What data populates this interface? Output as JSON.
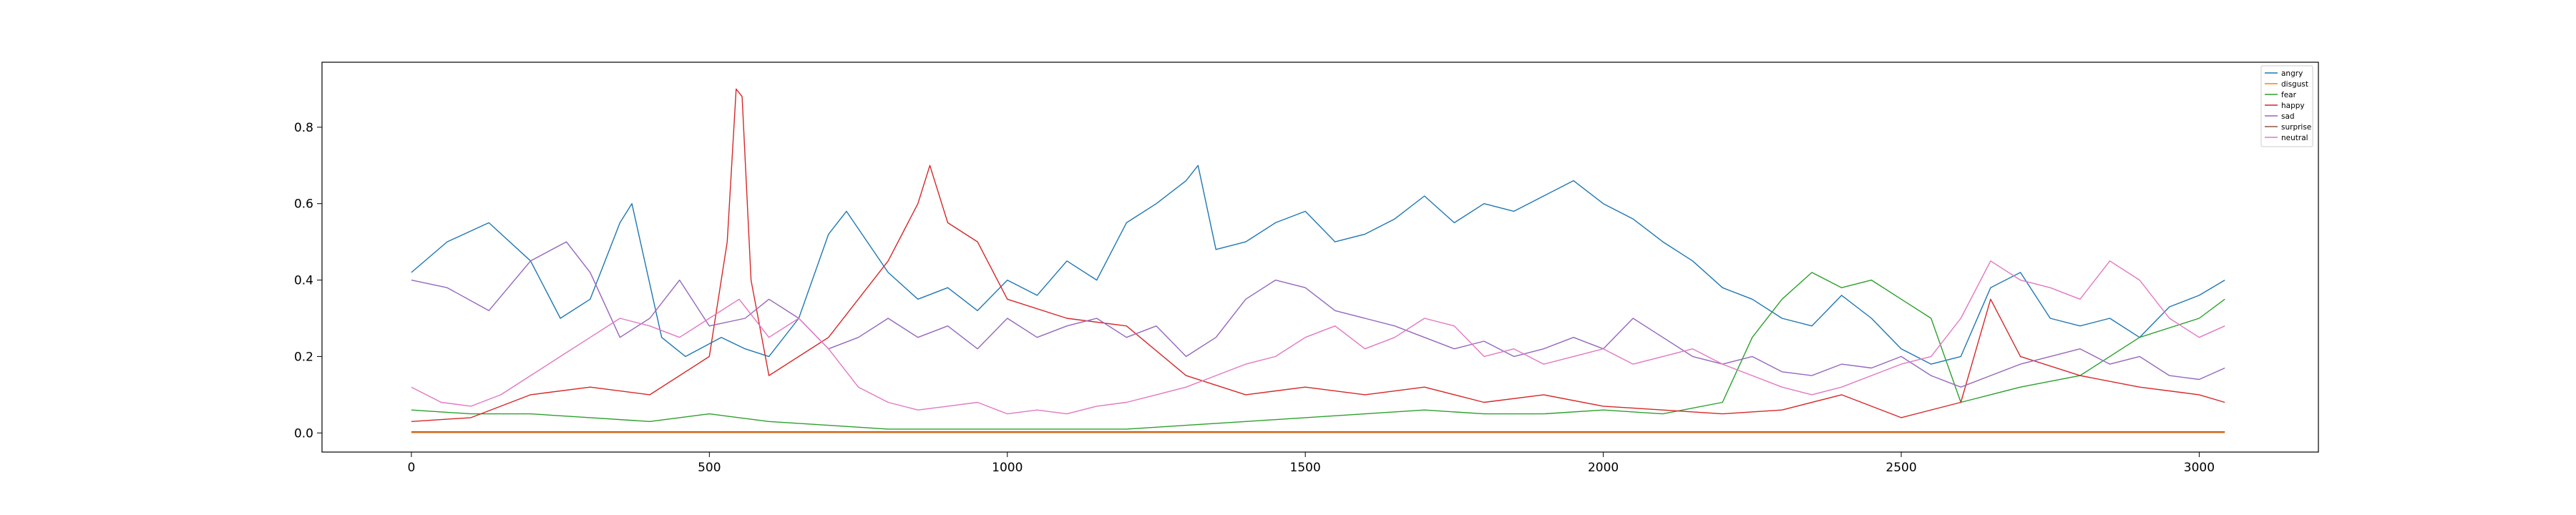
{
  "chart_data": {
    "type": "line",
    "title": "",
    "xlabel": "",
    "ylabel": "",
    "xlim": [
      -150,
      3200
    ],
    "ylim": [
      -0.05,
      0.97
    ],
    "x_ticks": [
      0,
      500,
      1000,
      1500,
      2000,
      2500,
      3000
    ],
    "y_ticks": [
      0.0,
      0.2,
      0.4,
      0.6,
      0.8
    ],
    "x_tick_labels": [
      "0",
      "500",
      "1000",
      "1500",
      "2000",
      "2500",
      "3000"
    ],
    "y_tick_labels": [
      "0.0",
      "0.2",
      "0.4",
      "0.6",
      "0.8"
    ],
    "x_range": [
      0,
      3043
    ],
    "legend_placement": "top-right",
    "grid": false,
    "series": [
      {
        "name": "angry",
        "color": "#1f77b4",
        "x": [
          0,
          60,
          130,
          200,
          250,
          300,
          350,
          370,
          420,
          460,
          520,
          560,
          600,
          650,
          700,
          730,
          800,
          850,
          900,
          950,
          1000,
          1050,
          1100,
          1150,
          1200,
          1250,
          1300,
          1320,
          1350,
          1400,
          1450,
          1500,
          1550,
          1600,
          1650,
          1700,
          1750,
          1800,
          1850,
          1900,
          1950,
          2000,
          2050,
          2100,
          2150,
          2200,
          2250,
          2300,
          2350,
          2400,
          2450,
          2500,
          2550,
          2600,
          2650,
          2700,
          2750,
          2800,
          2850,
          2900,
          2950,
          3000,
          3043
        ],
        "values": [
          0.42,
          0.5,
          0.55,
          0.45,
          0.3,
          0.35,
          0.55,
          0.6,
          0.25,
          0.2,
          0.25,
          0.22,
          0.2,
          0.3,
          0.52,
          0.58,
          0.42,
          0.35,
          0.38,
          0.32,
          0.4,
          0.36,
          0.45,
          0.4,
          0.55,
          0.6,
          0.66,
          0.7,
          0.48,
          0.5,
          0.55,
          0.58,
          0.5,
          0.52,
          0.56,
          0.62,
          0.55,
          0.6,
          0.58,
          0.62,
          0.66,
          0.6,
          0.56,
          0.5,
          0.45,
          0.38,
          0.35,
          0.3,
          0.28,
          0.36,
          0.3,
          0.22,
          0.18,
          0.2,
          0.38,
          0.42,
          0.3,
          0.28,
          0.3,
          0.25,
          0.33,
          0.36,
          0.4
        ]
      },
      {
        "name": "disgust",
        "color": "#ff7f0e",
        "x": [
          0,
          500,
          1000,
          1500,
          2000,
          2500,
          3043
        ],
        "values": [
          0.001,
          0.001,
          0.001,
          0.001,
          0.001,
          0.001,
          0.001
        ]
      },
      {
        "name": "fear",
        "color": "#2ca02c",
        "x": [
          0,
          100,
          200,
          300,
          400,
          500,
          600,
          700,
          800,
          900,
          1000,
          1100,
          1200,
          1300,
          1400,
          1500,
          1600,
          1700,
          1800,
          1900,
          2000,
          2100,
          2200,
          2250,
          2300,
          2350,
          2400,
          2450,
          2500,
          2550,
          2600,
          2700,
          2800,
          2900,
          3000,
          3043
        ],
        "values": [
          0.06,
          0.05,
          0.05,
          0.04,
          0.03,
          0.05,
          0.03,
          0.02,
          0.01,
          0.01,
          0.01,
          0.01,
          0.01,
          0.02,
          0.03,
          0.04,
          0.05,
          0.06,
          0.05,
          0.05,
          0.06,
          0.05,
          0.08,
          0.25,
          0.35,
          0.42,
          0.38,
          0.4,
          0.35,
          0.3,
          0.08,
          0.12,
          0.15,
          0.25,
          0.3,
          0.35
        ]
      },
      {
        "name": "happy",
        "color": "#d62728",
        "x": [
          0,
          100,
          200,
          300,
          400,
          500,
          530,
          545,
          555,
          570,
          600,
          700,
          800,
          850,
          870,
          900,
          950,
          1000,
          1100,
          1200,
          1300,
          1400,
          1500,
          1600,
          1700,
          1800,
          1900,
          2000,
          2100,
          2200,
          2300,
          2400,
          2500,
          2600,
          2650,
          2700,
          2800,
          2900,
          3000,
          3043
        ],
        "values": [
          0.03,
          0.04,
          0.1,
          0.12,
          0.1,
          0.2,
          0.5,
          0.9,
          0.88,
          0.4,
          0.15,
          0.25,
          0.45,
          0.6,
          0.7,
          0.55,
          0.5,
          0.35,
          0.3,
          0.28,
          0.15,
          0.1,
          0.12,
          0.1,
          0.12,
          0.08,
          0.1,
          0.07,
          0.06,
          0.05,
          0.06,
          0.1,
          0.04,
          0.08,
          0.35,
          0.2,
          0.15,
          0.12,
          0.1,
          0.08
        ]
      },
      {
        "name": "sad",
        "color": "#9467bd",
        "x": [
          0,
          60,
          130,
          200,
          260,
          300,
          350,
          400,
          450,
          500,
          560,
          600,
          650,
          700,
          750,
          800,
          850,
          900,
          950,
          1000,
          1050,
          1100,
          1150,
          1200,
          1250,
          1300,
          1350,
          1400,
          1450,
          1500,
          1550,
          1600,
          1650,
          1700,
          1750,
          1800,
          1850,
          1900,
          1950,
          2000,
          2050,
          2100,
          2150,
          2200,
          2250,
          2300,
          2350,
          2400,
          2450,
          2500,
          2550,
          2600,
          2650,
          2700,
          2750,
          2800,
          2850,
          2900,
          2950,
          3000,
          3043
        ],
        "values": [
          0.4,
          0.38,
          0.32,
          0.45,
          0.5,
          0.42,
          0.25,
          0.3,
          0.4,
          0.28,
          0.3,
          0.35,
          0.3,
          0.22,
          0.25,
          0.3,
          0.25,
          0.28,
          0.22,
          0.3,
          0.25,
          0.28,
          0.3,
          0.25,
          0.28,
          0.2,
          0.25,
          0.35,
          0.4,
          0.38,
          0.32,
          0.3,
          0.28,
          0.25,
          0.22,
          0.24,
          0.2,
          0.22,
          0.25,
          0.22,
          0.3,
          0.25,
          0.2,
          0.18,
          0.2,
          0.16,
          0.15,
          0.18,
          0.17,
          0.2,
          0.15,
          0.12,
          0.15,
          0.18,
          0.2,
          0.22,
          0.18,
          0.2,
          0.15,
          0.14,
          0.17
        ]
      },
      {
        "name": "surprise",
        "color": "#8c564b",
        "x": [
          0,
          500,
          1000,
          1500,
          2000,
          2500,
          3043
        ],
        "values": [
          0.003,
          0.003,
          0.003,
          0.003,
          0.003,
          0.003,
          0.003
        ]
      },
      {
        "name": "neutral",
        "color": "#e377c2",
        "x": [
          0,
          50,
          100,
          150,
          200,
          250,
          300,
          350,
          400,
          450,
          500,
          550,
          600,
          650,
          700,
          750,
          800,
          850,
          900,
          950,
          1000,
          1050,
          1100,
          1150,
          1200,
          1250,
          1300,
          1350,
          1400,
          1450,
          1500,
          1550,
          1600,
          1650,
          1700,
          1750,
          1800,
          1850,
          1900,
          1950,
          2000,
          2050,
          2100,
          2150,
          2200,
          2250,
          2300,
          2350,
          2400,
          2450,
          2500,
          2550,
          2600,
          2650,
          2700,
          2750,
          2800,
          2850,
          2900,
          2950,
          3000,
          3043
        ],
        "values": [
          0.12,
          0.08,
          0.07,
          0.1,
          0.15,
          0.2,
          0.25,
          0.3,
          0.28,
          0.25,
          0.3,
          0.35,
          0.25,
          0.3,
          0.22,
          0.12,
          0.08,
          0.06,
          0.07,
          0.08,
          0.05,
          0.06,
          0.05,
          0.07,
          0.08,
          0.1,
          0.12,
          0.15,
          0.18,
          0.2,
          0.25,
          0.28,
          0.22,
          0.25,
          0.3,
          0.28,
          0.2,
          0.22,
          0.18,
          0.2,
          0.22,
          0.18,
          0.2,
          0.22,
          0.18,
          0.15,
          0.12,
          0.1,
          0.12,
          0.15,
          0.18,
          0.2,
          0.3,
          0.45,
          0.4,
          0.38,
          0.35,
          0.45,
          0.4,
          0.3,
          0.25,
          0.28
        ]
      }
    ]
  }
}
